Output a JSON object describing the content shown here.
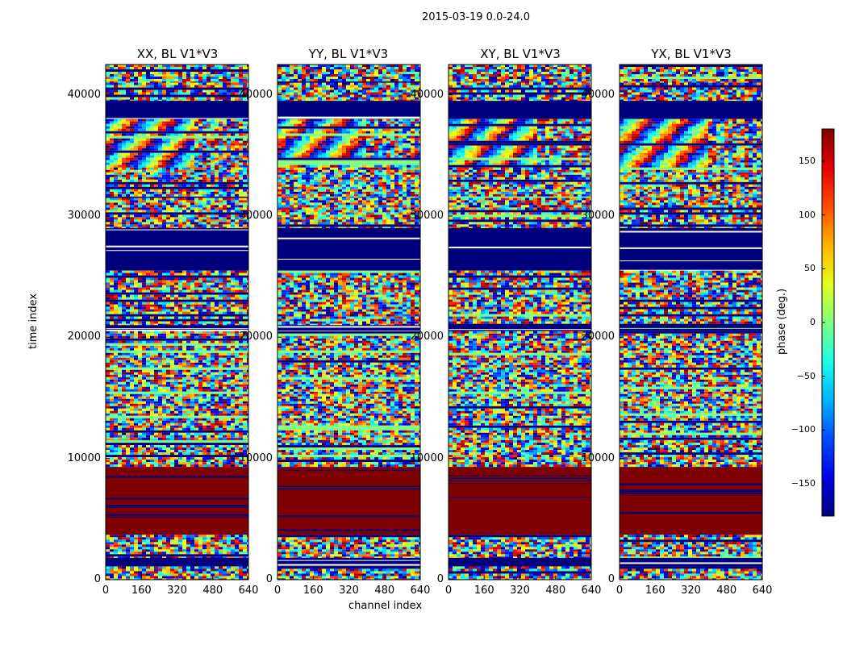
{
  "suptitle": "2015-03-19 0.0-24.0",
  "chart_data": {
    "type": "heatmap",
    "xlabel": "channel index",
    "ylabel": "time index",
    "xlim": [
      0,
      640
    ],
    "ylim": [
      0,
      42500
    ],
    "xticks": [
      "0",
      "160",
      "320",
      "480",
      "640"
    ],
    "yticks": [
      "0",
      "10000",
      "20000",
      "30000",
      "40000"
    ],
    "colormap": "jet",
    "colorbar": {
      "label": "phase (deg.)",
      "range": [
        -180,
        180
      ],
      "ticks": [
        "150",
        "100",
        "50",
        "0",
        "−50",
        "−100",
        "−150"
      ],
      "tick_values": [
        150,
        100,
        50,
        0,
        -50,
        -100,
        -150
      ]
    },
    "panels": [
      {
        "title": "XX, BL V1*V3",
        "id": "xx"
      },
      {
        "title": "YY, BL V1*V3",
        "id": "yy"
      },
      {
        "title": "XY, BL V1*V3",
        "id": "xy"
      },
      {
        "title": "YX, BL V1*V3",
        "id": "yx"
      }
    ],
    "bands": [
      {
        "from": 42500,
        "to": 41000,
        "kind": "mixed"
      },
      {
        "from": 41000,
        "to": 39500,
        "kind": "mixed"
      },
      {
        "from": 39500,
        "to": 38000,
        "kind": "blue"
      },
      {
        "from": 38000,
        "to": 34000,
        "kind": "fringe"
      },
      {
        "from": 34000,
        "to": 31500,
        "kind": "mixed"
      },
      {
        "from": 31500,
        "to": 29000,
        "kind": "mixed"
      },
      {
        "from": 29000,
        "to": 25500,
        "kind": "blue"
      },
      {
        "from": 25500,
        "to": 24500,
        "kind": "mixed"
      },
      {
        "from": 24500,
        "to": 21000,
        "kind": "mixed"
      },
      {
        "from": 21000,
        "to": 20500,
        "kind": "blue"
      },
      {
        "from": 20500,
        "to": 11500,
        "kind": "mixed"
      },
      {
        "from": 11500,
        "to": 9300,
        "kind": "mixed"
      },
      {
        "from": 9300,
        "to": 3700,
        "kind": "red"
      },
      {
        "from": 3700,
        "to": 1800,
        "kind": "mixed"
      },
      {
        "from": 1800,
        "to": 1100,
        "kind": "blue"
      },
      {
        "from": 1100,
        "to": 0,
        "kind": "mixed"
      }
    ]
  }
}
